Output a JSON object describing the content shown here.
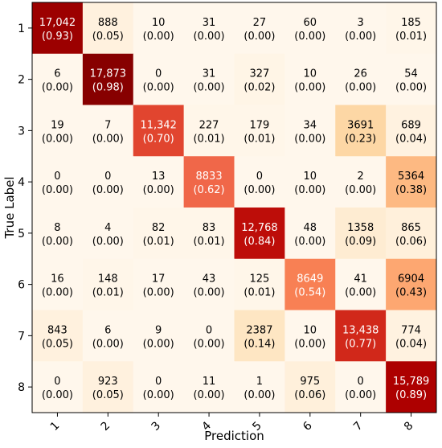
{
  "chart_data": {
    "type": "heatmap",
    "title": "",
    "xlabel": "Prediction",
    "ylabel": "True Label",
    "x_categories": [
      "1",
      "2",
      "3",
      "4",
      "5",
      "6",
      "7",
      "8"
    ],
    "y_categories": [
      "1",
      "2",
      "3",
      "4",
      "5",
      "6",
      "7",
      "8"
    ],
    "colormap": "OrRd",
    "grid": false,
    "counts": [
      [
        "17,042",
        "888",
        "10",
        "31",
        "27",
        "60",
        "3",
        "185"
      ],
      [
        "6",
        "17,873",
        "0",
        "31",
        "327",
        "10",
        "26",
        "54"
      ],
      [
        "19",
        "7",
        "11,342",
        "227",
        "179",
        "34",
        "3691",
        "689"
      ],
      [
        "0",
        "0",
        "13",
        "8833",
        "0",
        "10",
        "2",
        "5364"
      ],
      [
        "8",
        "4",
        "82",
        "83",
        "12,768",
        "48",
        "1358",
        "865"
      ],
      [
        "16",
        "148",
        "17",
        "43",
        "125",
        "8649",
        "41",
        "6904"
      ],
      [
        "843",
        "6",
        "9",
        "0",
        "2387",
        "10",
        "13,438",
        "774"
      ],
      [
        "0",
        "923",
        "0",
        "11",
        "1",
        "975",
        "0",
        "15,789"
      ]
    ],
    "proportions": [
      [
        "(0.93)",
        "(0.05)",
        "(0.00)",
        "(0.00)",
        "(0.00)",
        "(0.00)",
        "(0.00)",
        "(0.01)"
      ],
      [
        "(0.00)",
        "(0.98)",
        "(0.00)",
        "(0.00)",
        "(0.02)",
        "(0.00)",
        "(0.00)",
        "(0.00)"
      ],
      [
        "(0.00)",
        "(0.00)",
        "(0.70)",
        "(0.01)",
        "(0.01)",
        "(0.00)",
        "(0.23)",
        "(0.04)"
      ],
      [
        "(0.00)",
        "(0.00)",
        "(0.00)",
        "(0.62)",
        "(0.00)",
        "(0.00)",
        "(0.00)",
        "(0.38)"
      ],
      [
        "(0.00)",
        "(0.00)",
        "(0.01)",
        "(0.01)",
        "(0.84)",
        "(0.00)",
        "(0.09)",
        "(0.06)"
      ],
      [
        "(0.00)",
        "(0.01)",
        "(0.00)",
        "(0.00)",
        "(0.01)",
        "(0.54)",
        "(0.00)",
        "(0.43)"
      ],
      [
        "(0.05)",
        "(0.00)",
        "(0.00)",
        "(0.00)",
        "(0.14)",
        "(0.00)",
        "(0.77)",
        "(0.04)"
      ],
      [
        "(0.00)",
        "(0.05)",
        "(0.00)",
        "(0.00)",
        "(0.00)",
        "(0.06)",
        "(0.00)",
        "(0.89)"
      ]
    ]
  }
}
